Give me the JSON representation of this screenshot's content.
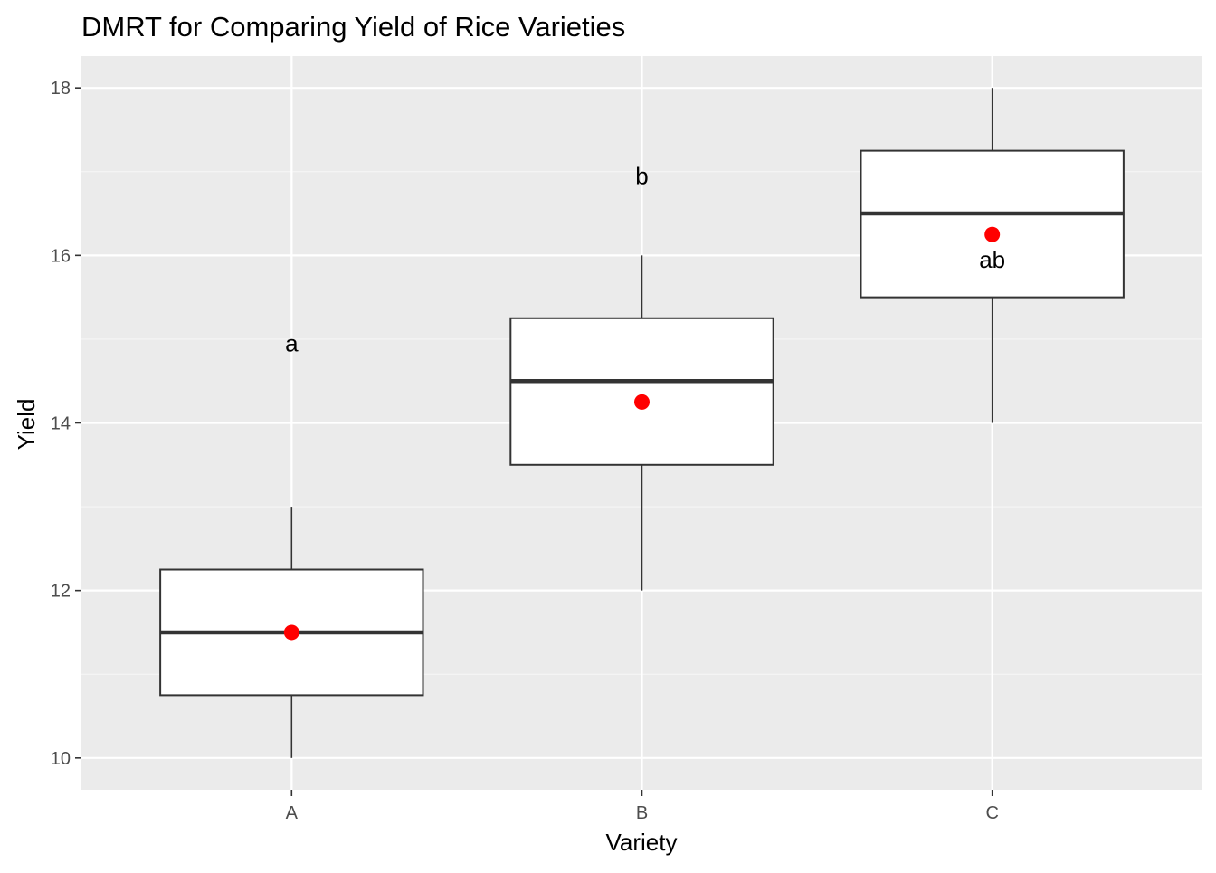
{
  "chart_data": {
    "type": "boxplot",
    "title": "DMRT for Comparing Yield of Rice Varieties",
    "xlabel": "Variety",
    "ylabel": "Yield",
    "categories": [
      "A",
      "B",
      "C"
    ],
    "ylim": [
      9.62,
      18.38
    ],
    "y_ticks": [
      10,
      12,
      14,
      16,
      18
    ],
    "y_tick_labels": [
      "10",
      "12",
      "14",
      "16",
      "18"
    ],
    "grid": true,
    "legend": "none",
    "boxes": [
      {
        "category": "A",
        "min": 10,
        "q1": 10.75,
        "median": 11.5,
        "q3": 12.25,
        "max": 13,
        "mean": 11.5,
        "letter": "a",
        "letter_y": 14.95
      },
      {
        "category": "B",
        "min": 12,
        "q1": 13.5,
        "median": 14.5,
        "q3": 15.25,
        "max": 16,
        "mean": 14.25,
        "letter": "b",
        "letter_y": 16.95
      },
      {
        "category": "C",
        "min": 14,
        "q1": 15.5,
        "median": 16.5,
        "q3": 17.25,
        "max": 18,
        "mean": 16.25,
        "letter": "ab",
        "letter_y": 15.95
      }
    ],
    "colors": {
      "panel_background": "#ebebeb",
      "grid_major": "#ffffff",
      "grid_minor": "#f5f5f5",
      "box_fill": "#ffffff",
      "box_outline": "#333333",
      "median_line": "#333333",
      "mean_point": "#ff0000",
      "tick_label": "#4d4d4d",
      "text": "#000000"
    }
  }
}
